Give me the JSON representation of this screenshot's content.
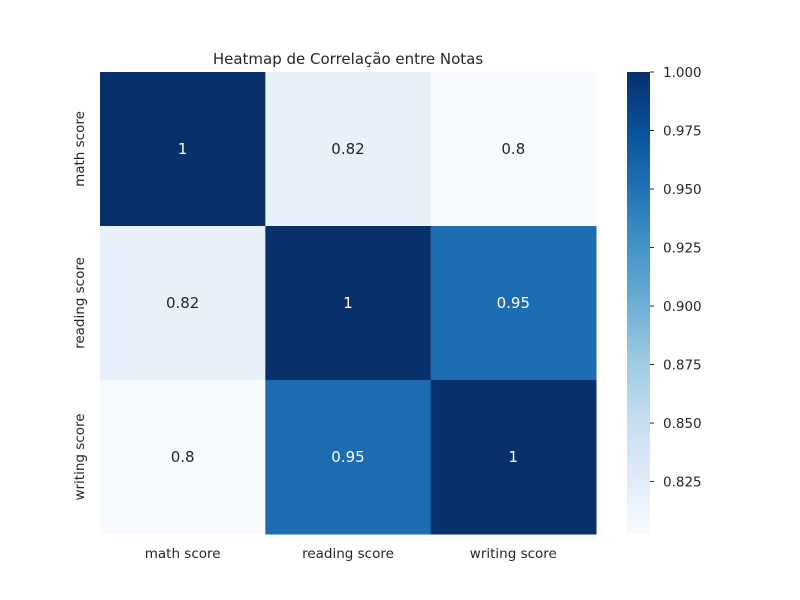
{
  "chart_data": {
    "type": "heatmap",
    "title": "Heatmap de Correlação entre Notas",
    "x_labels": [
      "math score",
      "reading score",
      "writing score"
    ],
    "y_labels": [
      "math score",
      "reading score",
      "writing score"
    ],
    "values": [
      [
        1.0,
        0.8176,
        0.8026
      ],
      [
        0.8176,
        1.0,
        0.9546
      ],
      [
        0.8026,
        0.9546,
        1.0
      ]
    ],
    "annotations": [
      [
        "1",
        "0.82",
        "0.8"
      ],
      [
        "0.82",
        "1",
        "0.95"
      ],
      [
        "0.8",
        "0.95",
        "1"
      ]
    ],
    "colormap": "Blues",
    "color_range": [
      0.8026,
      1.0
    ],
    "colorbar_ticks": [
      0.825,
      0.85,
      0.875,
      0.9,
      0.925,
      0.95,
      0.975,
      1.0
    ],
    "colorbar_tick_labels": [
      "0.825",
      "0.850",
      "0.875",
      "0.900",
      "0.925",
      "0.950",
      "0.975",
      "1.000"
    ],
    "colors": {
      "blues_stops": [
        "#f7fbff",
        "#deebf7",
        "#c6dbef",
        "#9ecae1",
        "#6baed6",
        "#4292c6",
        "#2171b5",
        "#08519c",
        "#08306b"
      ],
      "dark_text": "#262626",
      "light_text": "#ffffff"
    }
  }
}
